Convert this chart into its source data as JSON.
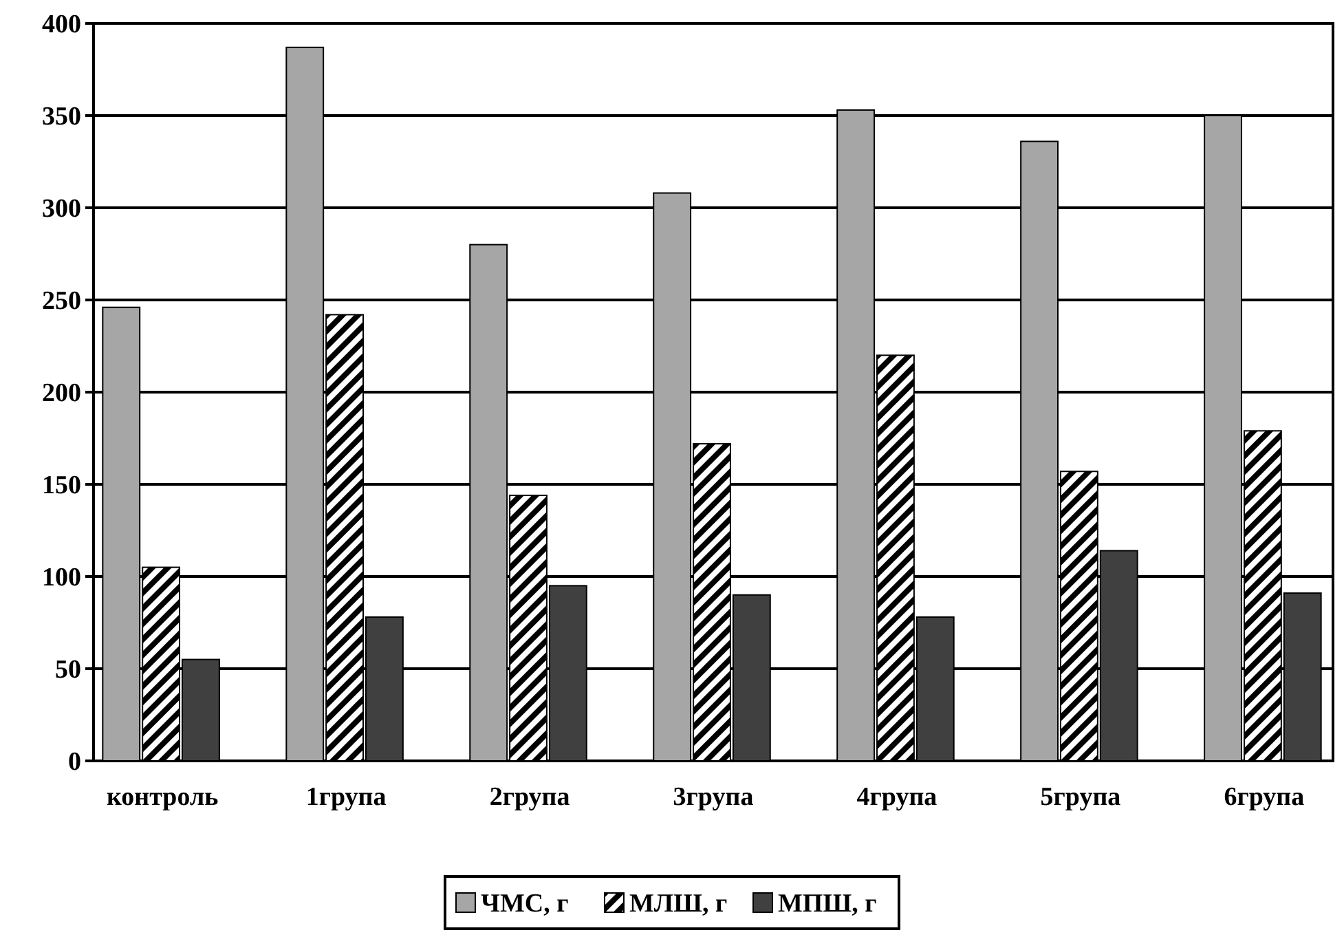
{
  "chart_data": {
    "type": "bar",
    "categories": [
      "контроль",
      "1група",
      "2група",
      "3група",
      "4група",
      "5група",
      "6група"
    ],
    "series": [
      {
        "name": "ЧМС, г",
        "color": "#a6a6a6",
        "values": [
          246,
          387,
          280,
          308,
          353,
          336,
          350
        ]
      },
      {
        "name": "МЛШ, г",
        "color": "#000000",
        "values": [
          105,
          242,
          144,
          172,
          220,
          157,
          179
        ]
      },
      {
        "name": "МПШ, г",
        "color": "#404040",
        "values": [
          55,
          78,
          95,
          90,
          78,
          114,
          91
        ]
      }
    ],
    "ylim": [
      0,
      400
    ],
    "yticks": [
      0,
      50,
      100,
      150,
      200,
      250,
      300,
      350,
      400
    ],
    "grid": "y",
    "legend": "bottom"
  }
}
